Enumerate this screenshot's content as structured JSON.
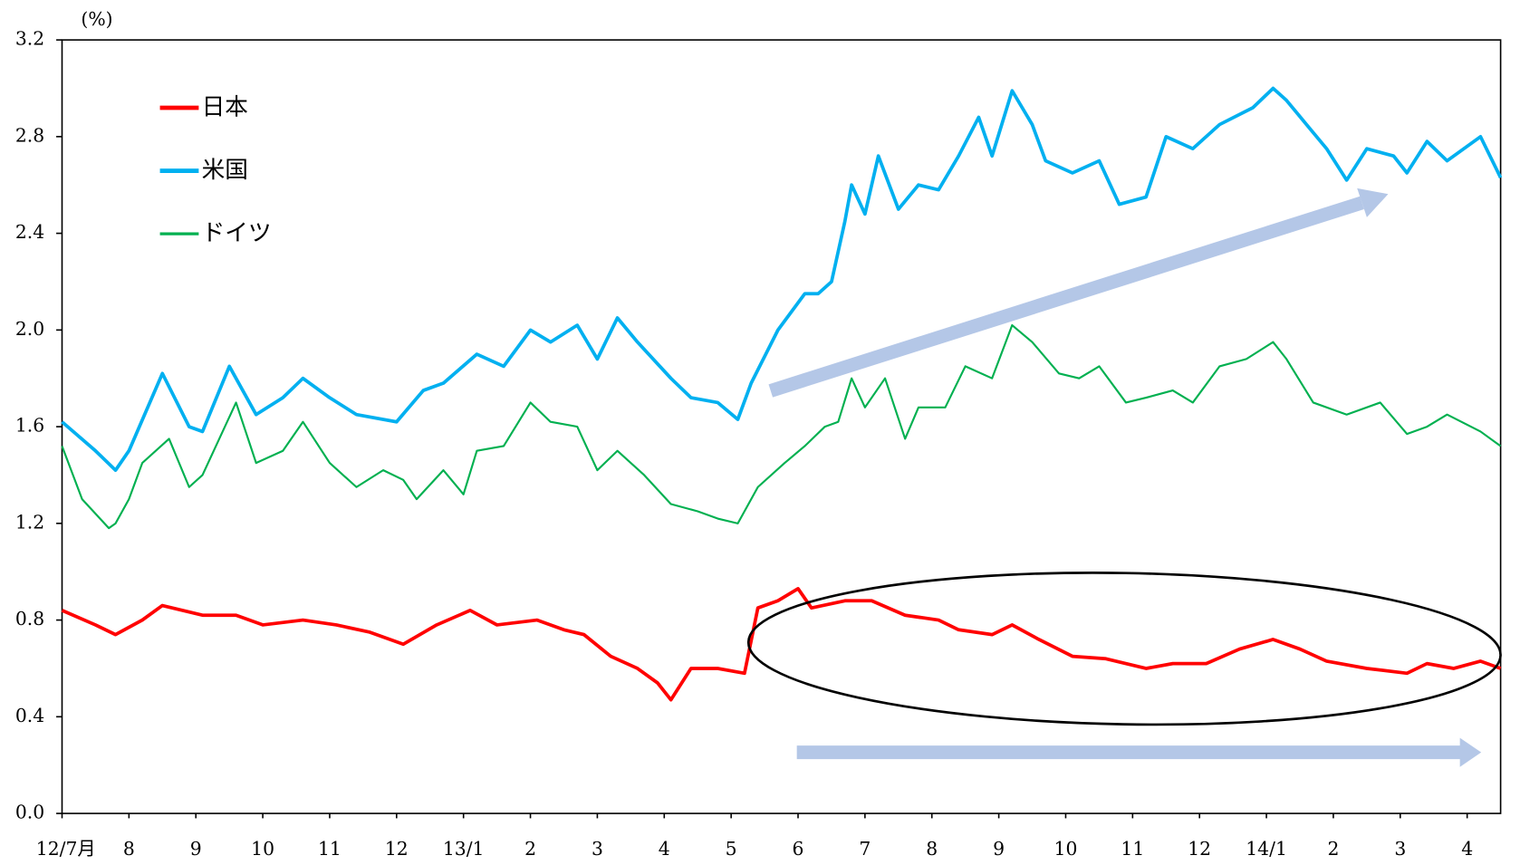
{
  "chart_data": {
    "type": "line",
    "y_label": "(%)",
    "xlim": [
      0,
      21.5
    ],
    "xticks": [
      {
        "value": 0,
        "label": "12/7月"
      },
      {
        "value": 1,
        "label": "8"
      },
      {
        "value": 2,
        "label": "9"
      },
      {
        "value": 3,
        "label": "10"
      },
      {
        "value": 4,
        "label": "11"
      },
      {
        "value": 5,
        "label": "12"
      },
      {
        "value": 6,
        "label": "13/1"
      },
      {
        "value": 7,
        "label": "2"
      },
      {
        "value": 8,
        "label": "3"
      },
      {
        "value": 9,
        "label": "4"
      },
      {
        "value": 10,
        "label": "5"
      },
      {
        "value": 11,
        "label": "6"
      },
      {
        "value": 12,
        "label": "7"
      },
      {
        "value": 13,
        "label": "8"
      },
      {
        "value": 14,
        "label": "9"
      },
      {
        "value": 15,
        "label": "10"
      },
      {
        "value": 16,
        "label": "11"
      },
      {
        "value": 17,
        "label": "12"
      },
      {
        "value": 18,
        "label": "14/1"
      },
      {
        "value": 19,
        "label": "2"
      },
      {
        "value": 20,
        "label": "3"
      },
      {
        "value": 21,
        "label": "4"
      }
    ],
    "ylim": [
      0,
      3.2
    ],
    "yticks": [
      {
        "value": 0,
        "label": "0.0"
      },
      0.4,
      0.8,
      1.2,
      1.6,
      {
        "value": 2,
        "label": "2.0"
      },
      2.4,
      2.8,
      3.2
    ],
    "legend": "upper left",
    "series": [
      {
        "name": "日本",
        "color": "#ff0000",
        "width": 3.5,
        "x": [
          0,
          0.5,
          0.8,
          1.2,
          1.5,
          2.1,
          2.6,
          3.0,
          3.6,
          4.1,
          4.6,
          5.1,
          5.6,
          6.1,
          6.5,
          7.1,
          7.5,
          7.8,
          8.2,
          8.6,
          8.9,
          9.1,
          9.4,
          9.8,
          10.2,
          10.4,
          10.7,
          11.0,
          11.2,
          11.7,
          12.1,
          12.6,
          13.1,
          13.4,
          13.9,
          14.2,
          14.6,
          15.1,
          15.6,
          16.2,
          16.6,
          17.1,
          17.6,
          18.1,
          18.5,
          18.9,
          19.5,
          20.1,
          20.4,
          20.8,
          21.2,
          21.5
        ],
        "values": [
          0.84,
          0.78,
          0.74,
          0.8,
          0.86,
          0.82,
          0.82,
          0.78,
          0.8,
          0.78,
          0.75,
          0.7,
          0.78,
          0.84,
          0.78,
          0.8,
          0.76,
          0.74,
          0.65,
          0.6,
          0.54,
          0.47,
          0.6,
          0.6,
          0.58,
          0.85,
          0.88,
          0.93,
          0.85,
          0.88,
          0.88,
          0.82,
          0.8,
          0.76,
          0.74,
          0.78,
          0.72,
          0.65,
          0.64,
          0.6,
          0.62,
          0.62,
          0.68,
          0.72,
          0.68,
          0.63,
          0.6,
          0.58,
          0.62,
          0.6,
          0.63,
          0.6
        ]
      },
      {
        "name": "米国",
        "color": "#00b0f0",
        "width": 3.5,
        "x": [
          0,
          0.5,
          0.8,
          1.0,
          1.5,
          1.9,
          2.1,
          2.5,
          2.9,
          3.3,
          3.6,
          4.0,
          4.4,
          5.0,
          5.4,
          5.7,
          6.2,
          6.6,
          7.0,
          7.3,
          7.7,
          8.0,
          8.3,
          8.6,
          9.1,
          9.4,
          9.8,
          10.1,
          10.3,
          10.7,
          11.1,
          11.3,
          11.5,
          11.7,
          11.8,
          12.0,
          12.2,
          12.5,
          12.8,
          13.1,
          13.4,
          13.7,
          13.9,
          14.2,
          14.5,
          14.7,
          15.1,
          15.5,
          15.8,
          16.2,
          16.5,
          16.9,
          17.3,
          17.8,
          18.1,
          18.3,
          18.6,
          18.9,
          19.2,
          19.5,
          19.9,
          20.1,
          20.4,
          20.7,
          21.2,
          21.5
        ],
        "values": [
          1.62,
          1.5,
          1.42,
          1.5,
          1.82,
          1.6,
          1.58,
          1.85,
          1.65,
          1.72,
          1.8,
          1.72,
          1.65,
          1.62,
          1.75,
          1.78,
          1.9,
          1.85,
          2.0,
          1.95,
          2.02,
          1.88,
          2.05,
          1.95,
          1.8,
          1.72,
          1.7,
          1.63,
          1.78,
          2.0,
          2.15,
          2.15,
          2.2,
          2.45,
          2.6,
          2.48,
          2.72,
          2.5,
          2.6,
          2.58,
          2.72,
          2.88,
          2.72,
          2.99,
          2.85,
          2.7,
          2.65,
          2.7,
          2.52,
          2.55,
          2.8,
          2.75,
          2.85,
          2.92,
          3.0,
          2.95,
          2.85,
          2.75,
          2.62,
          2.75,
          2.72,
          2.65,
          2.78,
          2.7,
          2.8,
          2.63
        ]
      },
      {
        "name": "ドイツ",
        "color": "#00b050",
        "width": 2,
        "x": [
          0,
          0.3,
          0.7,
          0.8,
          1.0,
          1.2,
          1.6,
          1.9,
          2.1,
          2.6,
          2.9,
          3.3,
          3.6,
          4.0,
          4.4,
          4.8,
          5.1,
          5.3,
          5.7,
          6.0,
          6.2,
          6.6,
          7.0,
          7.3,
          7.7,
          8.0,
          8.3,
          8.7,
          9.1,
          9.5,
          9.8,
          10.1,
          10.4,
          10.8,
          11.1,
          11.4,
          11.6,
          11.8,
          12.0,
          12.3,
          12.6,
          12.8,
          13.2,
          13.5,
          13.9,
          14.2,
          14.5,
          14.9,
          15.2,
          15.5,
          15.9,
          16.2,
          16.6,
          16.9,
          17.3,
          17.7,
          18.1,
          18.3,
          18.7,
          19.2,
          19.7,
          20.1,
          20.4,
          20.7,
          21.2,
          21.5
        ],
        "values": [
          1.52,
          1.3,
          1.18,
          1.2,
          1.3,
          1.45,
          1.55,
          1.35,
          1.4,
          1.7,
          1.45,
          1.5,
          1.62,
          1.45,
          1.35,
          1.42,
          1.38,
          1.3,
          1.42,
          1.32,
          1.5,
          1.52,
          1.7,
          1.62,
          1.6,
          1.42,
          1.5,
          1.4,
          1.28,
          1.25,
          1.22,
          1.2,
          1.35,
          1.45,
          1.52,
          1.6,
          1.62,
          1.8,
          1.68,
          1.8,
          1.55,
          1.68,
          1.68,
          1.85,
          1.8,
          2.02,
          1.95,
          1.82,
          1.8,
          1.85,
          1.7,
          1.72,
          1.75,
          1.7,
          1.85,
          1.88,
          1.95,
          1.88,
          1.7,
          1.65,
          1.7,
          1.57,
          1.6,
          1.65,
          1.58,
          1.52
        ]
      }
    ]
  }
}
